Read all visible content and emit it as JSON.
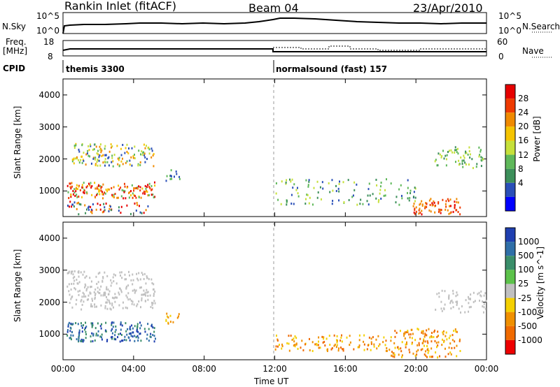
{
  "header": {
    "site": "Rankin Inlet (fitACF)",
    "beam": "Beam 04",
    "date": "23/Apr/2010"
  },
  "side_labels": {
    "nsky": "N.Sky",
    "nsearch": "N.Search",
    "freq": "Freq.",
    "mhz": "[MHz]",
    "nave": "Nave",
    "cpid": "CPID"
  },
  "cpid_segments": [
    "themis 3300",
    "normalsound (fast) 157"
  ],
  "noise_ticks_left": [
    "10^5",
    "10^0"
  ],
  "noise_ticks_right": [
    "10^5",
    "10^0"
  ],
  "freq_ticks_left": [
    "18",
    "8"
  ],
  "nave_ticks_right": [
    "60",
    "0"
  ],
  "colors": {
    "power_scale": [
      "#0000ff",
      "#2a4fb8",
      "#3c8f5a",
      "#5fb85a",
      "#c6e03a",
      "#f5c400",
      "#f08a00",
      "#ef3a00",
      "#e60000"
    ],
    "velocity_scale": [
      "#1f3fb0",
      "#2f6fa8",
      "#3a8e6a",
      "#5cc24a",
      "#c0c0c0",
      "#f4d000",
      "#f09000",
      "#f06a00",
      "#ee0000"
    ]
  },
  "chart_data": [
    {
      "type": "heatmap",
      "title": "",
      "xlabel": "Time UT",
      "ylabel": "Slant Range [km]",
      "x_ticks": [
        "00:00",
        "04:00",
        "08:00",
        "12:00",
        "16:00",
        "20:00",
        "00:00"
      ],
      "y_ticks": [
        "1000",
        "2000",
        "3000",
        "4000"
      ],
      "ylim": [
        200,
        4500
      ],
      "colorbar": {
        "label": "Power [dB]",
        "ticks": [
          "4",
          "8",
          "12",
          "16",
          "20",
          "24",
          "28"
        ]
      }
    },
    {
      "type": "heatmap",
      "title": "",
      "xlabel": "Time UT",
      "ylabel": "Slant Range [km]",
      "x_ticks": [
        "00:00",
        "04:00",
        "08:00",
        "12:00",
        "16:00",
        "20:00",
        "00:00"
      ],
      "y_ticks": [
        "1000",
        "2000",
        "3000",
        "4000"
      ],
      "ylim": [
        200,
        4500
      ],
      "colorbar": {
        "label": "Velocity [m s^-1]",
        "ticks": [
          "1000",
          "500",
          "100",
          "25",
          "-25",
          "-100",
          "-500",
          "-1000"
        ]
      }
    }
  ]
}
